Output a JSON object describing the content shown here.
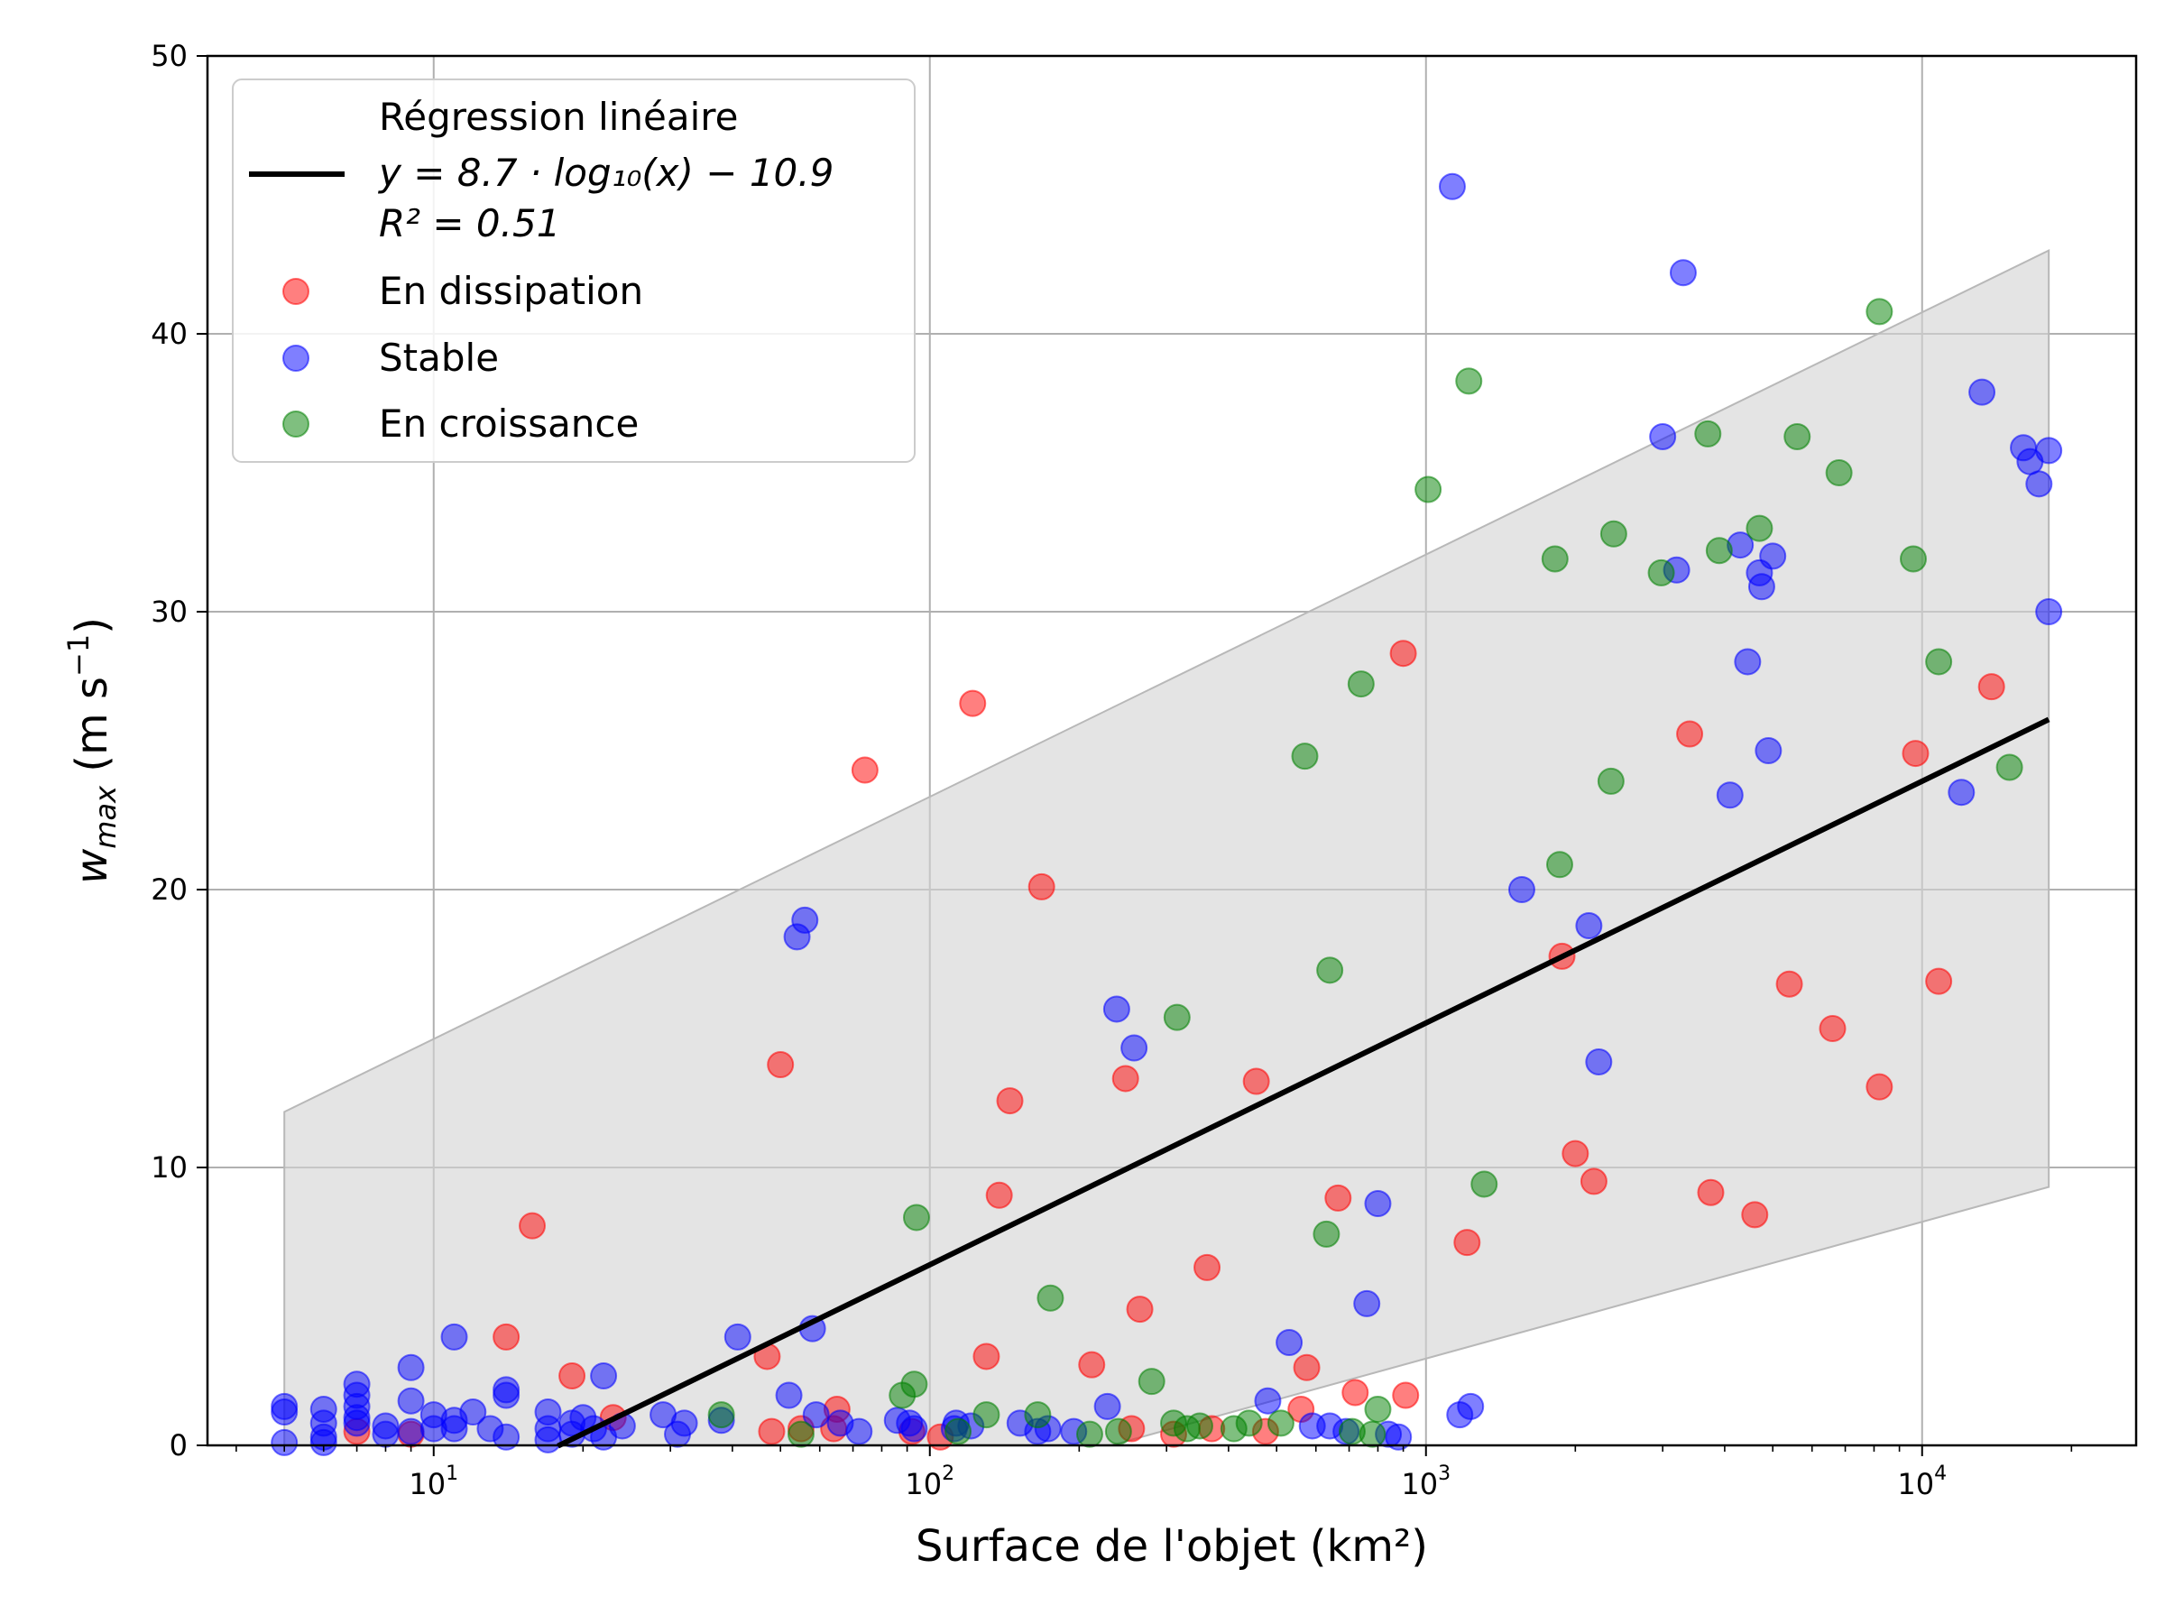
{
  "chart_data": {
    "type": "scatter",
    "xscale": "log",
    "xlim": [
      3.5,
      27000
    ],
    "ylim": [
      0,
      50
    ],
    "xlabel": "Surface de l'objet (km²)",
    "ylabel": "w_max (m s⁻¹)",
    "ylabel_main": "w",
    "ylabel_sub": "max",
    "ylabel_unit": " (m s",
    "ylabel_sup": "−1",
    "ylabel_close": ")",
    "grid": true,
    "legend_position": "top-left",
    "x_ticks": [
      10,
      100,
      1000,
      10000
    ],
    "x_tick_labels": [
      {
        "base": "10",
        "exp": "1"
      },
      {
        "base": "10",
        "exp": "2"
      },
      {
        "base": "10",
        "exp": "3"
      },
      {
        "base": "10",
        "exp": "4"
      }
    ],
    "y_ticks": [
      0,
      10,
      20,
      30,
      40,
      50
    ],
    "y_tick_labels": [
      "0",
      "10",
      "20",
      "30",
      "40",
      "50"
    ],
    "regression": {
      "label_line1": "Régression linéaire",
      "label_line2": "y = 8.7 · log₁₀(x) − 10.9",
      "label_line3": "R² = 0.51",
      "slope": 8.7,
      "intercept": -10.9,
      "x_range": [
        17.8,
        18000
      ],
      "color": "#000000"
    },
    "band": {
      "x": [
        5,
        18000
      ],
      "lower": [
        -8.2,
        9.3
      ],
      "upper": [
        12.0,
        43.0
      ],
      "color": "#d3d3d3"
    },
    "series": [
      {
        "name": "En dissipation",
        "color": "#ff0000",
        "points": [
          [
            15.8,
            7.9
          ],
          [
            14,
            3.9
          ],
          [
            19,
            2.5
          ],
          [
            23,
            1.0
          ],
          [
            7,
            0.5
          ],
          [
            9,
            0.4
          ],
          [
            47,
            3.2
          ],
          [
            50,
            13.7
          ],
          [
            48,
            0.5
          ],
          [
            55,
            0.6
          ],
          [
            65,
            1.3
          ],
          [
            64,
            0.6
          ],
          [
            74,
            24.3
          ],
          [
            92,
            0.5
          ],
          [
            105,
            0.3
          ],
          [
            122,
            26.7
          ],
          [
            130,
            3.2
          ],
          [
            138,
            9.0
          ],
          [
            145,
            12.4
          ],
          [
            168,
            20.1
          ],
          [
            212,
            2.9
          ],
          [
            248,
            13.2
          ],
          [
            255,
            0.6
          ],
          [
            265,
            4.9
          ],
          [
            310,
            0.4
          ],
          [
            362,
            6.4
          ],
          [
            370,
            0.6
          ],
          [
            455,
            13.1
          ],
          [
            475,
            0.5
          ],
          [
            560,
            1.3
          ],
          [
            575,
            2.8
          ],
          [
            665,
            8.9
          ],
          [
            720,
            1.9
          ],
          [
            900,
            28.5
          ],
          [
            910,
            1.8
          ],
          [
            1210,
            7.3
          ],
          [
            1880,
            17.6
          ],
          [
            2000,
            10.5
          ],
          [
            2180,
            9.5
          ],
          [
            3400,
            25.6
          ],
          [
            3750,
            9.1
          ],
          [
            4600,
            8.3
          ],
          [
            5400,
            16.6
          ],
          [
            6600,
            15.0
          ],
          [
            8200,
            12.9
          ],
          [
            9700,
            24.9
          ],
          [
            10800,
            16.7
          ],
          [
            13800,
            27.3
          ]
        ]
      },
      {
        "name": "Stable",
        "color": "#0000ff",
        "points": [
          [
            5,
            1.4
          ],
          [
            5,
            1.2
          ],
          [
            5,
            0.1
          ],
          [
            6,
            1.3
          ],
          [
            6,
            0.8
          ],
          [
            6,
            0.3
          ],
          [
            6,
            0.1
          ],
          [
            7,
            2.2
          ],
          [
            7,
            1.8
          ],
          [
            7,
            1.4
          ],
          [
            7,
            1.0
          ],
          [
            7,
            0.8
          ],
          [
            8,
            0.7
          ],
          [
            8,
            0.4
          ],
          [
            9,
            2.8
          ],
          [
            9,
            1.6
          ],
          [
            9,
            0.5
          ],
          [
            10,
            1.1
          ],
          [
            10,
            0.6
          ],
          [
            11,
            3.9
          ],
          [
            11,
            0.9
          ],
          [
            11,
            0.6
          ],
          [
            12,
            1.2
          ],
          [
            13,
            0.6
          ],
          [
            14,
            2.0
          ],
          [
            14,
            1.8
          ],
          [
            14,
            0.3
          ],
          [
            17,
            1.2
          ],
          [
            17,
            0.6
          ],
          [
            17,
            0.2
          ],
          [
            19,
            0.8
          ],
          [
            19,
            0.4
          ],
          [
            20,
            1.0
          ],
          [
            21,
            0.6
          ],
          [
            22,
            2.5
          ],
          [
            22,
            0.3
          ],
          [
            24,
            0.7
          ],
          [
            29,
            1.1
          ],
          [
            31,
            0.4
          ],
          [
            32,
            0.8
          ],
          [
            38,
            0.9
          ],
          [
            41,
            3.9
          ],
          [
            52,
            1.8
          ],
          [
            54,
            18.3
          ],
          [
            56,
            18.9
          ],
          [
            58,
            4.2
          ],
          [
            59,
            1.1
          ],
          [
            66,
            0.8
          ],
          [
            72,
            0.5
          ],
          [
            86,
            0.9
          ],
          [
            91,
            0.8
          ],
          [
            93,
            0.6
          ],
          [
            112,
            0.6
          ],
          [
            113,
            0.8
          ],
          [
            121,
            0.7
          ],
          [
            152,
            0.8
          ],
          [
            165,
            0.5
          ],
          [
            173,
            0.6
          ],
          [
            195,
            0.5
          ],
          [
            228,
            1.4
          ],
          [
            238,
            15.7
          ],
          [
            258,
            14.3
          ],
          [
            480,
            1.6
          ],
          [
            530,
            3.7
          ],
          [
            590,
            0.7
          ],
          [
            640,
            0.7
          ],
          [
            690,
            0.5
          ],
          [
            760,
            5.1
          ],
          [
            800,
            8.7
          ],
          [
            840,
            0.4
          ],
          [
            880,
            0.3
          ],
          [
            1130,
            45.3
          ],
          [
            1170,
            1.1
          ],
          [
            1230,
            1.4
          ],
          [
            1560,
            20.0
          ],
          [
            2130,
            18.7
          ],
          [
            2230,
            13.8
          ],
          [
            3000,
            36.3
          ],
          [
            3200,
            31.5
          ],
          [
            3300,
            42.2
          ],
          [
            4100,
            23.4
          ],
          [
            4300,
            32.4
          ],
          [
            4450,
            28.2
          ],
          [
            4700,
            31.4
          ],
          [
            4750,
            30.9
          ],
          [
            4900,
            25.0
          ],
          [
            5000,
            32.0
          ],
          [
            12000,
            23.5
          ],
          [
            13200,
            37.9
          ],
          [
            16000,
            35.9
          ],
          [
            16500,
            35.4
          ],
          [
            17200,
            34.6
          ],
          [
            18000,
            35.8
          ],
          [
            18000,
            30.0
          ]
        ]
      },
      {
        "name": "En croissance",
        "color": "#008000",
        "points": [
          [
            38,
            1.1
          ],
          [
            55,
            0.4
          ],
          [
            88,
            1.8
          ],
          [
            93,
            2.2
          ],
          [
            94,
            8.2
          ],
          [
            114,
            0.5
          ],
          [
            130,
            1.1
          ],
          [
            165,
            1.1
          ],
          [
            175,
            5.3
          ],
          [
            210,
            0.4
          ],
          [
            240,
            0.5
          ],
          [
            280,
            2.3
          ],
          [
            310,
            0.8
          ],
          [
            315,
            15.4
          ],
          [
            330,
            0.6
          ],
          [
            350,
            0.7
          ],
          [
            410,
            0.6
          ],
          [
            440,
            0.8
          ],
          [
            510,
            0.8
          ],
          [
            570,
            24.8
          ],
          [
            630,
            7.6
          ],
          [
            640,
            17.1
          ],
          [
            710,
            0.5
          ],
          [
            740,
            27.4
          ],
          [
            780,
            0.4
          ],
          [
            800,
            1.3
          ],
          [
            1010,
            34.4
          ],
          [
            1220,
            38.3
          ],
          [
            1310,
            9.4
          ],
          [
            1820,
            31.9
          ],
          [
            1860,
            20.9
          ],
          [
            2360,
            23.9
          ],
          [
            2390,
            32.8
          ],
          [
            2980,
            31.4
          ],
          [
            3700,
            36.4
          ],
          [
            3900,
            32.2
          ],
          [
            4700,
            33.0
          ],
          [
            5600,
            36.3
          ],
          [
            6800,
            35.0
          ],
          [
            8200,
            40.8
          ],
          [
            9600,
            31.9
          ],
          [
            10800,
            28.2
          ],
          [
            15000,
            24.4
          ]
        ]
      }
    ]
  }
}
